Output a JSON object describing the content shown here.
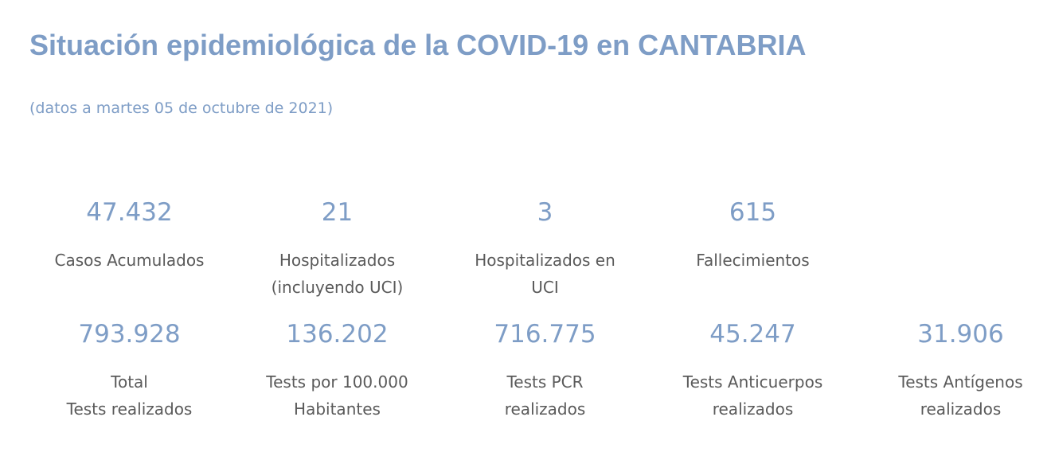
{
  "header": {
    "title": "Situación epidemiológica de la COVID-19 en CANTABRIA",
    "subtitle": "(datos a martes 05 de octubre de 2021)"
  },
  "stats_row_1": [
    {
      "value": "47.432",
      "label": "Casos Acumulados"
    },
    {
      "value": "21",
      "label": "Hospitalizados\n(incluyendo UCI)"
    },
    {
      "value": "3",
      "label": "Hospitalizados en\nUCI"
    },
    {
      "value": "615",
      "label": "Fallecimientos"
    }
  ],
  "stats_row_2": [
    {
      "value": "793.928",
      "label": "Total\nTests realizados"
    },
    {
      "value": "136.202",
      "label": "Tests por 100.000\nHabitantes"
    },
    {
      "value": "716.775",
      "label": " Tests PCR\nrealizados"
    },
    {
      "value": "45.247",
      "label": "Tests Anticuerpos\nrealizados"
    },
    {
      "value": "31.906",
      "label": "Tests Antígenos\nrealizados"
    }
  ],
  "colors": {
    "accent": "#7e9dc6",
    "label_text": "#5a5a5a",
    "background": "#ffffff"
  }
}
